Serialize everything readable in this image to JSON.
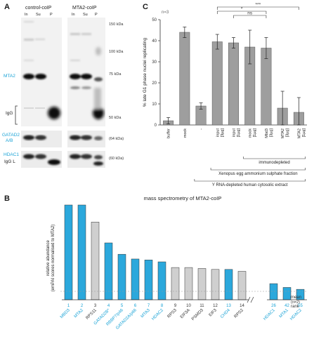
{
  "panel_a": {
    "letter": "A",
    "titles": [
      "control-coIP",
      "MTA2-coIP"
    ],
    "lanes_left": [
      "In",
      "Su",
      "P"
    ],
    "lanes_right": [
      "In",
      "Su",
      "P"
    ],
    "markers": [
      "150 kDa",
      "100 kDa",
      "75 kDa",
      "50 kDa"
    ],
    "side_labels": {
      "mta2": "MTA2",
      "igg": "IgG",
      "gatad2": "GATAD2",
      "gatad2_sub": "A/B",
      "hdac1": "HDAC1",
      "igg_l": "IgG L"
    },
    "strip_markers": [
      "(60 kDa)",
      "(64 kDa)"
    ]
  },
  "panel_c": {
    "letter": "C",
    "n_label": "n=3",
    "sig": [
      "*",
      "ns",
      "***"
    ],
    "bracket_labels": [
      "immunodepleted",
      "Xenopus egg ammonium sulphate fraction",
      "Y RNA-depleted human cytosolic extract"
    ]
  },
  "panel_b": {
    "letter": "B",
    "title": "mass spectrometry of MTA2-coIP",
    "ylabel_lines": [
      "relative abundance",
      "(emPAI scores normalised to MTA2)"
    ],
    "row_labels": [
      "mean",
      "(n=2)",
      "rank"
    ]
  },
  "chart_data": [
    {
      "type": "bar",
      "panel": "C",
      "categories": [
        "buffer",
        "mock",
        "-",
        "input [3µg]",
        "input [1µg]",
        "mock [1µg]",
        "Mbd3 [3µg]",
        "MTA2 [3µg]",
        "MTA2 [1µg]"
      ],
      "values": [
        2,
        44,
        9,
        39.5,
        39,
        37,
        36.5,
        8,
        6
      ],
      "errors": [
        1.5,
        2.5,
        1.5,
        3.5,
        2.5,
        8,
        5,
        8,
        7
      ],
      "ylabel": "% late G1 phase nuclei replicating",
      "ylim": [
        0,
        50
      ],
      "yticks": [
        0,
        10,
        20,
        30,
        40,
        50
      ],
      "bar_color": "#9e9e9e",
      "grid": false
    },
    {
      "type": "bar",
      "panel": "B",
      "categories": [
        "MBD3",
        "MTA2",
        "RPS11",
        "GATAD2B*",
        "RBBP7/p46",
        "GATAD2A/p66",
        "MTA3",
        "HDAC2",
        "RPS3",
        "EIF3A",
        "PSMD3",
        "EIF3",
        "CHD4",
        "RPS2",
        "HDAC1",
        "MTA1",
        "HDAC2"
      ],
      "rank": [
        "1",
        "2",
        "3",
        "4",
        "5",
        "6",
        "7",
        "8",
        "9",
        "10",
        "11",
        "12",
        "13",
        "14",
        "26",
        "42",
        "55"
      ],
      "values": [
        1.0,
        1.0,
        0.82,
        0.6,
        0.48,
        0.43,
        0.42,
        0.4,
        0.34,
        0.34,
        0.33,
        0.32,
        0.32,
        0.3,
        0.17,
        0.13,
        0.11
      ],
      "highlight": [
        true,
        true,
        false,
        true,
        true,
        true,
        true,
        true,
        false,
        false,
        false,
        false,
        true,
        false,
        true,
        true,
        true
      ],
      "colors": {
        "highlight": "#2ba8dc",
        "other": "#cfcfcf"
      },
      "ylim": [
        0,
        1
      ]
    }
  ]
}
